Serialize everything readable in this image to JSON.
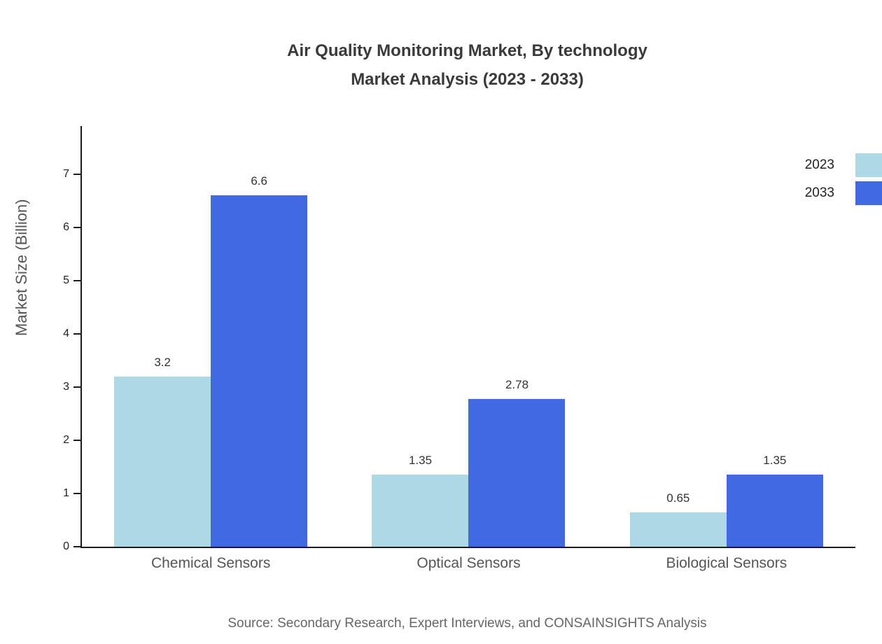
{
  "chart_data": {
    "type": "bar",
    "title": "Air Quality Monitoring Market, By technology",
    "subtitle": "Market Analysis (2023 - 2033)",
    "ylabel": "Market Size (Billion)",
    "xlabel": "",
    "categories": [
      "Chemical Sensors",
      "Optical Sensors",
      "Biological Sensors"
    ],
    "series": [
      {
        "name": "2023",
        "color": "#ADD8E6",
        "values": [
          3.2,
          1.35,
          0.65
        ]
      },
      {
        "name": "2033",
        "color": "#4169E1",
        "values": [
          6.6,
          2.78,
          1.35
        ]
      }
    ],
    "value_labels": [
      [
        "3.2",
        "1.35",
        "0.65"
      ],
      [
        "6.6",
        "2.78",
        "1.35"
      ]
    ],
    "y_ticks": [
      0,
      1,
      2,
      3,
      4,
      5,
      6,
      7
    ],
    "ylim": [
      0,
      7.9
    ],
    "grid": false,
    "legend_position": "top-right",
    "source": "Source: Secondary Research, Expert Interviews, and CONSAINSIGHTS Analysis"
  }
}
